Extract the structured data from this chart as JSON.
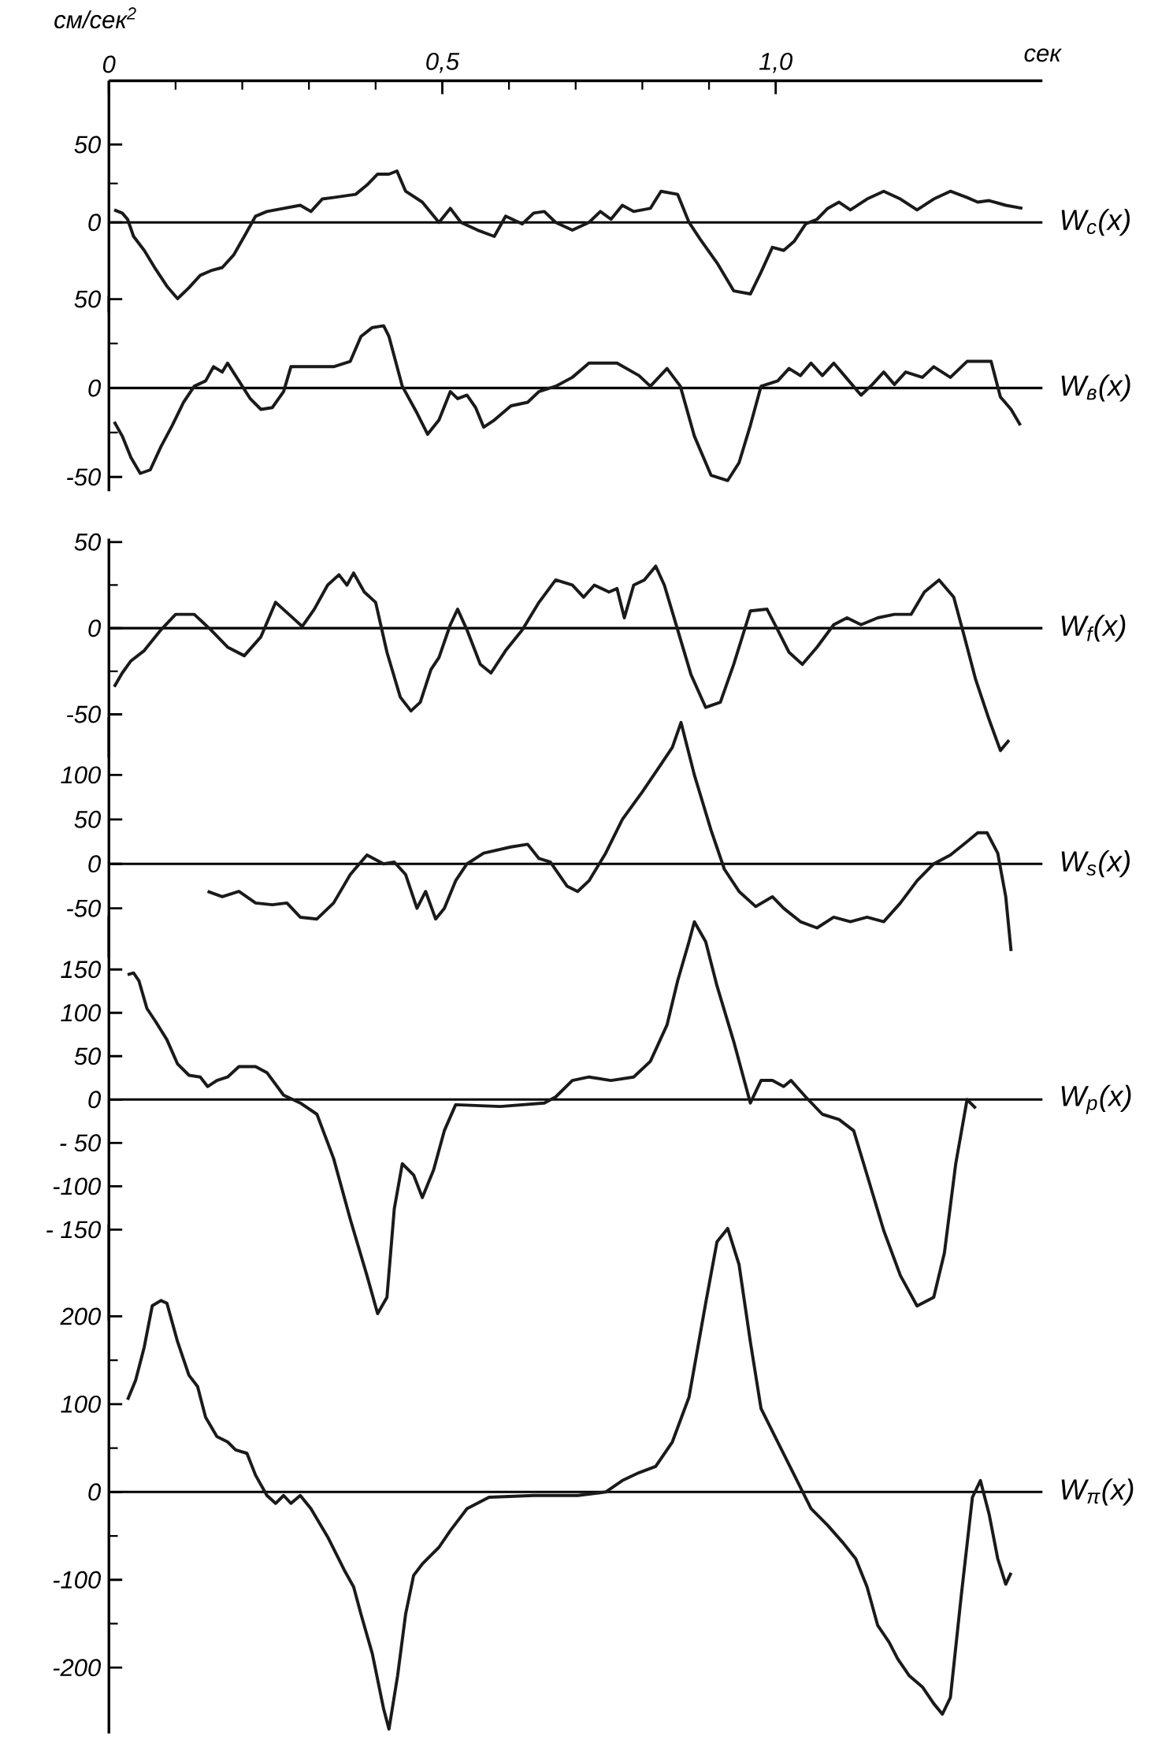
{
  "chart_data": [
    {
      "type": "line",
      "xlabel": "сек",
      "ylabel": "см/сек$^{2}$",
      "xlim": [
        0,
        1.4
      ],
      "xticks": [
        0,
        {
          "value": 0.5,
          "label": "0,5"
        },
        {
          "value": 1.0,
          "label": "1,0"
        }
      ],
      "ylim": [
        -58,
        91
      ],
      "yticks": [
        50,
        0
      ],
      "ref_lines": [
        {
          "axis": "y",
          "value": 0
        }
      ],
      "series": [
        {
          "name": "W$_{c}$(x)",
          "color": "#1a1a1a",
          "x": [
            0.008,
            0.02,
            0.028,
            0.037,
            0.053,
            0.07,
            0.087,
            0.103,
            0.12,
            0.137,
            0.153,
            0.17,
            0.187,
            0.203,
            0.22,
            0.237,
            0.262,
            0.287,
            0.303,
            0.32,
            0.337,
            0.37,
            0.387,
            0.403,
            0.42,
            0.432,
            0.445,
            0.47,
            0.495,
            0.512,
            0.528,
            0.553,
            0.578,
            0.595,
            0.62,
            0.637,
            0.653,
            0.67,
            0.695,
            0.72,
            0.737,
            0.753,
            0.77,
            0.787,
            0.812,
            0.828,
            0.853,
            0.87,
            0.887,
            0.912,
            0.937,
            0.962,
            0.978,
            0.995,
            1.012,
            1.028,
            1.045,
            1.062,
            1.078,
            1.095,
            1.112,
            1.137,
            1.162,
            1.187,
            1.212,
            1.237,
            1.262,
            1.287,
            1.303,
            1.32,
            1.345,
            1.37
          ],
          "values": [
            8,
            6,
            2,
            -9,
            -18,
            -30,
            -41,
            -49,
            -42,
            -34,
            -31,
            -29,
            -21,
            -9,
            4,
            7,
            9,
            11,
            7,
            15,
            16,
            18,
            24,
            31,
            31,
            33,
            20,
            13,
            0,
            9,
            0,
            -5,
            -9,
            4,
            -1,
            6,
            7,
            0,
            -5,
            0,
            7,
            2,
            11,
            7,
            9,
            20,
            18,
            0,
            -11,
            -26,
            -44,
            -46,
            -32,
            -16,
            -18,
            -12,
            -1,
            2,
            9,
            13,
            8,
            15,
            20,
            15,
            8,
            15,
            20,
            16,
            13,
            14,
            11,
            9
          ]
        }
      ]
    },
    {
      "type": "line",
      "xlim": [
        0,
        1.4
      ],
      "tick_labels": "y",
      "ylim": [
        -58,
        52
      ],
      "yticks": [
        50,
        0,
        -50
      ],
      "ref_lines": [
        {
          "axis": "y",
          "value": 0
        }
      ],
      "series": [
        {
          "name": "W$_{в}$(x)",
          "color": "#1a1a1a",
          "x": [
            0.008,
            0.02,
            0.033,
            0.047,
            0.062,
            0.078,
            0.095,
            0.112,
            0.128,
            0.145,
            0.157,
            0.17,
            0.178,
            0.195,
            0.212,
            0.228,
            0.245,
            0.262,
            0.273,
            0.295,
            0.337,
            0.362,
            0.378,
            0.395,
            0.412,
            0.42,
            0.44,
            0.462,
            0.478,
            0.495,
            0.512,
            0.523,
            0.537,
            0.55,
            0.562,
            0.578,
            0.603,
            0.628,
            0.645,
            0.67,
            0.695,
            0.72,
            0.762,
            0.795,
            0.812,
            0.837,
            0.857,
            0.878,
            0.903,
            0.928,
            0.945,
            0.962,
            0.978,
            1.003,
            1.02,
            1.037,
            1.053,
            1.07,
            1.087,
            1.103,
            1.128,
            1.145,
            1.162,
            1.178,
            1.195,
            1.22,
            1.237,
            1.262,
            1.287,
            1.323,
            1.337,
            1.353,
            1.367
          ],
          "values": [
            -19,
            -27,
            -39,
            -48,
            -46,
            -33,
            -21,
            -8,
            1,
            4,
            12,
            9,
            14,
            4,
            -6,
            -12,
            -11,
            -2,
            12,
            12,
            12,
            15,
            29,
            34,
            35,
            29,
            1,
            -14,
            -26,
            -18,
            -2,
            -6,
            -4,
            -11,
            -22,
            -18,
            -10,
            -8,
            -2,
            1,
            6,
            14,
            14,
            7,
            1,
            11,
            1,
            -27,
            -49,
            -52,
            -42,
            -21,
            1,
            4,
            11,
            7,
            14,
            7,
            14,
            7,
            -4,
            2,
            9,
            2,
            9,
            6,
            12,
            6,
            15,
            15,
            -5,
            -12,
            -21
          ]
        }
      ]
    },
    {
      "type": "line",
      "xlim": [
        0,
        1.4
      ],
      "tick_labels": "y",
      "ylim": [
        -75,
        52
      ],
      "yticks": [
        50,
        0,
        -50
      ],
      "ref_lines": [
        {
          "axis": "y",
          "value": 0
        }
      ],
      "series": [
        {
          "name": "W$_{f}$(x)",
          "color": "#1a1a1a",
          "x": [
            0.008,
            0.02,
            0.033,
            0.053,
            0.078,
            0.1,
            0.128,
            0.153,
            0.178,
            0.203,
            0.228,
            0.25,
            0.27,
            0.29,
            0.308,
            0.328,
            0.345,
            0.357,
            0.367,
            0.383,
            0.4,
            0.417,
            0.437,
            0.453,
            0.467,
            0.483,
            0.495,
            0.512,
            0.523,
            0.537,
            0.557,
            0.573,
            0.595,
            0.62,
            0.645,
            0.67,
            0.695,
            0.712,
            0.728,
            0.75,
            0.762,
            0.773,
            0.787,
            0.803,
            0.82,
            0.833,
            0.853,
            0.873,
            0.895,
            0.917,
            0.937,
            0.962,
            0.987,
            1.003,
            1.02,
            1.04,
            1.062,
            1.087,
            1.107,
            1.128,
            1.153,
            1.178,
            1.203,
            1.223,
            1.245,
            1.267,
            1.283,
            1.3,
            1.32,
            1.337,
            1.35
          ],
          "values": [
            -34,
            -26,
            -19,
            -13,
            -1,
            8,
            8,
            -1,
            -11,
            -16,
            -5,
            15,
            8,
            1,
            11,
            25,
            31,
            25,
            32,
            21,
            15,
            -14,
            -40,
            -48,
            -43,
            -24,
            -17,
            2,
            11,
            -1,
            -21,
            -26,
            -13,
            -1,
            15,
            28,
            25,
            18,
            25,
            21,
            23,
            6,
            25,
            28,
            36,
            25,
            -1,
            -27,
            -46,
            -43,
            -21,
            10,
            11,
            -1,
            -14,
            -21,
            -11,
            2,
            6,
            2,
            6,
            8,
            8,
            21,
            28,
            18,
            -5,
            -30,
            -53,
            -71,
            -65
          ]
        }
      ]
    },
    {
      "type": "line",
      "xlim": [
        0,
        1.4
      ],
      "tick_labels": "y",
      "ylim": [
        -105,
        165
      ],
      "yticks": [
        100,
        50,
        0,
        -50
      ],
      "ref_lines": [
        {
          "axis": "y",
          "value": 0
        }
      ],
      "series": [
        {
          "name": "W$_{s}$(x)",
          "color": "#1a1a1a",
          "x": [
            0.148,
            0.17,
            0.195,
            0.22,
            0.245,
            0.267,
            0.287,
            0.312,
            0.337,
            0.362,
            0.387,
            0.412,
            0.428,
            0.445,
            0.462,
            0.475,
            0.49,
            0.503,
            0.52,
            0.537,
            0.562,
            0.603,
            0.628,
            0.645,
            0.662,
            0.687,
            0.703,
            0.72,
            0.745,
            0.77,
            0.8,
            0.828,
            0.845,
            0.858,
            0.878,
            0.903,
            0.923,
            0.945,
            0.97,
            0.995,
            1.012,
            1.037,
            1.062,
            1.087,
            1.112,
            1.137,
            1.162,
            1.187,
            1.212,
            1.237,
            1.262,
            1.287,
            1.303,
            1.317,
            1.333,
            1.345,
            1.353
          ],
          "values": [
            -31,
            -37,
            -31,
            -44,
            -46,
            -44,
            -60,
            -62,
            -44,
            -12,
            10,
            0,
            2,
            -12,
            -50,
            -31,
            -62,
            -50,
            -19,
            0,
            12,
            19,
            22,
            6,
            2,
            -25,
            -31,
            -19,
            12,
            50,
            81,
            112,
            131,
            159,
            100,
            38,
            -6,
            -31,
            -48,
            -37,
            -50,
            -65,
            -72,
            -60,
            -65,
            -60,
            -65,
            -44,
            -19,
            0,
            10,
            25,
            35,
            35,
            12,
            -37,
            -98
          ]
        }
      ]
    },
    {
      "type": "line",
      "xlim": [
        0,
        1.4
      ],
      "tick_labels": "y",
      "ylim": [
        -255,
        212
      ],
      "yticks": [
        150,
        100,
        50,
        0,
        {
          "value": -50,
          "label": "- 50"
        },
        -100,
        {
          "value": -150,
          "label": "- 150"
        }
      ],
      "ref_lines": [
        {
          "axis": "y",
          "value": 0
        }
      ],
      "series": [
        {
          "name": "W$_{p}$(x)",
          "color": "#1a1a1a",
          "x": [
            0.028,
            0.037,
            0.045,
            0.057,
            0.07,
            0.087,
            0.103,
            0.12,
            0.137,
            0.148,
            0.162,
            0.178,
            0.195,
            0.22,
            0.237,
            0.262,
            0.287,
            0.312,
            0.337,
            0.362,
            0.387,
            0.403,
            0.417,
            0.428,
            0.44,
            0.457,
            0.47,
            0.487,
            0.503,
            0.52,
            0.587,
            0.653,
            0.67,
            0.695,
            0.72,
            0.753,
            0.787,
            0.812,
            0.837,
            0.853,
            0.87,
            0.878,
            0.895,
            0.912,
            0.937,
            0.962,
            0.978,
            0.995,
            1.012,
            1.023,
            1.045,
            1.07,
            1.095,
            1.117,
            1.137,
            1.162,
            1.187,
            1.212,
            1.237,
            1.253,
            1.27,
            1.287,
            1.3
          ],
          "values": [
            144,
            146,
            137,
            105,
            90,
            69,
            41,
            28,
            26,
            15,
            22,
            26,
            38,
            38,
            31,
            5,
            -4,
            -17,
            -68,
            -138,
            -203,
            -247,
            -228,
            -126,
            -74,
            -87,
            -113,
            -81,
            -36,
            -6,
            -8,
            -4,
            3,
            22,
            26,
            22,
            26,
            44,
            86,
            137,
            182,
            205,
            182,
            131,
            67,
            -4,
            22,
            22,
            15,
            22,
            3,
            -17,
            -23,
            -36,
            -87,
            -151,
            -203,
            -238,
            -228,
            -177,
            -74,
            0,
            -10
          ]
        }
      ]
    },
    {
      "type": "line",
      "xlim": [
        0,
        1.4
      ],
      "tick_labels": "y",
      "ylim": [
        -275,
        305
      ],
      "yticks": [
        200,
        100,
        0,
        -100,
        -200
      ],
      "ref_lines": [
        {
          "axis": "y",
          "value": 0
        }
      ],
      "series": [
        {
          "name": "W$_{π}$(x)",
          "color": "#1a1a1a",
          "x": [
            0.028,
            0.04,
            0.053,
            0.065,
            0.078,
            0.087,
            0.103,
            0.12,
            0.133,
            0.145,
            0.162,
            0.178,
            0.19,
            0.207,
            0.22,
            0.237,
            0.25,
            0.262,
            0.273,
            0.287,
            0.303,
            0.328,
            0.353,
            0.367,
            0.378,
            0.395,
            0.412,
            0.42,
            0.433,
            0.445,
            0.457,
            0.47,
            0.483,
            0.495,
            0.512,
            0.537,
            0.57,
            0.637,
            0.703,
            0.745,
            0.77,
            0.795,
            0.82,
            0.845,
            0.87,
            0.895,
            0.912,
            0.928,
            0.945,
            0.962,
            0.978,
            1.003,
            1.028,
            1.053,
            1.078,
            1.1,
            1.12,
            1.137,
            1.153,
            1.17,
            1.183,
            1.2,
            1.22,
            1.237,
            1.25,
            1.262,
            1.278,
            1.295,
            1.307,
            1.32,
            1.333,
            1.345,
            1.353
          ],
          "values": [
            105,
            127,
            165,
            212,
            218,
            215,
            171,
            133,
            120,
            85,
            63,
            57,
            48,
            44,
            19,
            -4,
            -13,
            -4,
            -13,
            -4,
            -19,
            -51,
            -89,
            -108,
            -139,
            -184,
            -247,
            -270,
            -209,
            -139,
            -95,
            -82,
            -72,
            -63,
            -44,
            -19,
            -6,
            -4,
            -4,
            0,
            13,
            22,
            29,
            57,
            108,
            215,
            285,
            300,
            259,
            171,
            95,
            57,
            19,
            -19,
            -38,
            -57,
            -76,
            -108,
            -152,
            -171,
            -190,
            -209,
            -222,
            -241,
            -253,
            -234,
            -120,
            -6,
            13,
            -25,
            -76,
            -105,
            -92
          ]
        }
      ]
    }
  ]
}
